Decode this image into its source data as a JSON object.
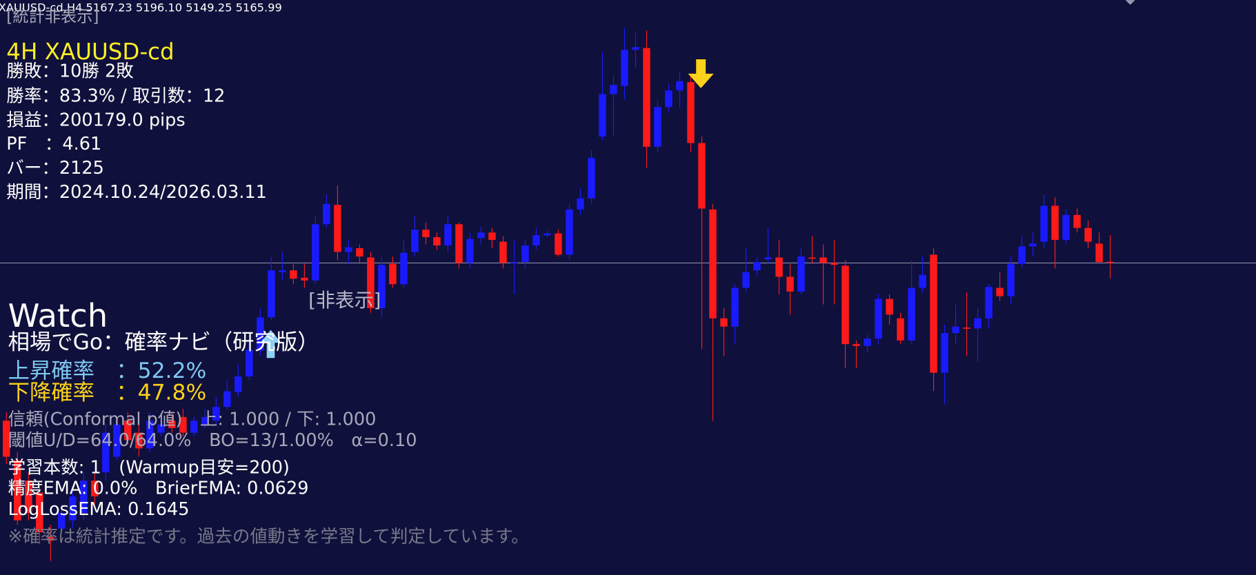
{
  "chart_data": {
    "type": "candlestick",
    "header": "XAUUSD-cd,H4  5167.23 5196.10 5149.25 5165.99",
    "ylim": [
      4827.8,
      5451
    ],
    "up_color": "#1a1aff",
    "down_color": "#ff1a1a",
    "price_line_color": "#8a8aa8",
    "ohlc": [
      [
        4995,
        5004,
        4948,
        4956
      ],
      [
        4952,
        4961,
        4882,
        4887
      ],
      [
        4930,
        4939,
        4887,
        4895
      ],
      [
        4917,
        4926,
        4861,
        4874
      ],
      [
        4869,
        4882,
        4843,
        4865
      ],
      [
        4878,
        4904,
        4874,
        4895
      ],
      [
        4887,
        4922,
        4878,
        4913
      ],
      [
        4895,
        4939,
        4887,
        4930
      ],
      [
        4930,
        4939,
        4904,
        4913
      ],
      [
        4939,
        4991,
        4930,
        4982
      ],
      [
        4956,
        4999,
        4952,
        4991
      ],
      [
        4995,
        5004,
        4969,
        4974
      ],
      [
        4982,
        4991,
        4956,
        4965
      ],
      [
        4965,
        5004,
        4961,
        4995
      ],
      [
        4982,
        4999,
        4978,
        4991
      ],
      [
        4995,
        5004,
        4982,
        4987
      ],
      [
        4999,
        5008,
        4978,
        4982
      ],
      [
        4982,
        4999,
        4978,
        4995
      ],
      [
        4991,
        5008,
        4987,
        4999
      ],
      [
        4995,
        5021,
        4991,
        5010
      ],
      [
        5010,
        5039,
        5007,
        5027
      ],
      [
        5026,
        5056,
        5021,
        5043
      ],
      [
        5043,
        5082,
        5039,
        5072
      ],
      [
        5071,
        5117,
        5065,
        5107
      ],
      [
        5107,
        5173,
        5104,
        5158
      ],
      [
        5156,
        5178,
        5147,
        5158
      ],
      [
        5158,
        5165,
        5143,
        5149
      ],
      [
        5150,
        5165,
        5139,
        5147
      ],
      [
        5147,
        5217,
        5143,
        5208
      ],
      [
        5208,
        5240,
        5204,
        5230
      ],
      [
        5229,
        5250,
        5169,
        5178
      ],
      [
        5178,
        5191,
        5165,
        5183
      ],
      [
        5182,
        5186,
        5165,
        5173
      ],
      [
        5172,
        5178,
        5112,
        5117
      ],
      [
        5117,
        5173,
        5108,
        5164
      ],
      [
        5165,
        5173,
        5139,
        5143
      ],
      [
        5143,
        5191,
        5139,
        5177
      ],
      [
        5178,
        5217,
        5173,
        5202
      ],
      [
        5202,
        5210,
        5186,
        5194
      ],
      [
        5194,
        5199,
        5180,
        5185
      ],
      [
        5185,
        5217,
        5178,
        5208
      ],
      [
        5208,
        5210,
        5160,
        5166
      ],
      [
        5166,
        5199,
        5160,
        5192
      ],
      [
        5193,
        5205,
        5186,
        5199
      ],
      [
        5199,
        5204,
        5182,
        5191
      ],
      [
        5189,
        5195,
        5160,
        5166
      ],
      [
        5166,
        5191,
        5132,
        5167
      ],
      [
        5167,
        5191,
        5160,
        5185
      ],
      [
        5185,
        5204,
        5180,
        5196
      ],
      [
        5196,
        5201,
        5194,
        5198
      ],
      [
        5198,
        5202,
        5173,
        5175
      ],
      [
        5175,
        5230,
        5169,
        5224
      ],
      [
        5224,
        5247,
        5218,
        5236
      ],
      [
        5236,
        5288,
        5230,
        5280
      ],
      [
        5303,
        5395,
        5299,
        5349
      ],
      [
        5349,
        5369,
        5303,
        5359
      ],
      [
        5358,
        5421,
        5343,
        5397
      ],
      [
        5397,
        5416,
        5377,
        5400
      ],
      [
        5399,
        5418,
        5269,
        5292
      ],
      [
        5292,
        5342,
        5286,
        5335
      ],
      [
        5335,
        5360,
        5329,
        5353
      ],
      [
        5353,
        5373,
        5334,
        5363
      ],
      [
        5362,
        5369,
        5286,
        5296
      ],
      [
        5296,
        5303,
        5073,
        5225
      ],
      [
        5224,
        5230,
        4995,
        5106
      ],
      [
        5106,
        5117,
        5065,
        5097
      ],
      [
        5097,
        5143,
        5078,
        5139
      ],
      [
        5139,
        5182,
        5134,
        5156
      ],
      [
        5158,
        5172,
        5152,
        5167
      ],
      [
        5170,
        5204,
        5165,
        5172
      ],
      [
        5172,
        5191,
        5132,
        5151
      ],
      [
        5151,
        5165,
        5110,
        5135
      ],
      [
        5135,
        5182,
        5132,
        5173
      ],
      [
        5172,
        5195,
        5165,
        5171
      ],
      [
        5172,
        5186,
        5121,
        5166
      ],
      [
        5166,
        5191,
        5121,
        5164
      ],
      [
        5163,
        5169,
        5052,
        5078
      ],
      [
        5078,
        5082,
        5052,
        5076
      ],
      [
        5076,
        5088,
        5069,
        5084
      ],
      [
        5084,
        5132,
        5078,
        5127
      ],
      [
        5127,
        5132,
        5099,
        5110
      ],
      [
        5106,
        5112,
        5078,
        5082
      ],
      [
        5082,
        5169,
        5078,
        5139
      ],
      [
        5139,
        5173,
        5134,
        5153
      ],
      [
        5175,
        5182,
        5027,
        5047
      ],
      [
        5047,
        5099,
        5013,
        5090
      ],
      [
        5090,
        5121,
        5078,
        5097
      ],
      [
        5096,
        5134,
        5065,
        5095
      ],
      [
        5095,
        5117,
        5059,
        5106
      ],
      [
        5106,
        5143,
        5095,
        5140
      ],
      [
        5139,
        5156,
        5125,
        5130
      ],
      [
        5130,
        5173,
        5121,
        5165
      ],
      [
        5165,
        5195,
        5160,
        5184
      ],
      [
        5184,
        5199,
        5173,
        5187
      ],
      [
        5189,
        5240,
        5182,
        5228
      ],
      [
        5228,
        5237,
        5160,
        5191
      ],
      [
        5191,
        5224,
        5186,
        5218
      ],
      [
        5218,
        5225,
        5199,
        5204
      ],
      [
        5204,
        5212,
        5182,
        5189
      ],
      [
        5187,
        5199,
        5165,
        5167
      ],
      [
        5167.23,
        5196.1,
        5149.25,
        5165.99
      ]
    ]
  },
  "stats_panel": {
    "hidden_label": "[統計非表示]",
    "title": "4H XAUUSD-cd",
    "lines": [
      "勝敗：10勝 2敗",
      "勝率：83.3%  /  取引数：12",
      "損益：200179.0 pips",
      "PF　：4.61",
      "バー：2125",
      "期間：2024.10.24/2026.03.11"
    ]
  },
  "hide_label": "[非表示]",
  "watch_panel": {
    "title": "Watch",
    "subtitle": "相場でGo：確率ナビ（研究版）",
    "up_prob": "上昇確率　：52.2%",
    "down_prob": "下降確率　：47.8%",
    "confidence": "信頼(Conformal p値)　上: 1.000 / 下: 1.000",
    "threshold": "閾値U/D=64.0/64.0%　BO=13/1.00%　α=0.10",
    "learning": "学習本数: 1　(Warmup目安=200)",
    "accuracy": "精度EMA: 0.0%　BrierEMA: 0.0629",
    "logloss": "LogLossEMA: 0.1645",
    "note": "※確率は統計推定です。過去の値動きを学習して判定しています。"
  }
}
